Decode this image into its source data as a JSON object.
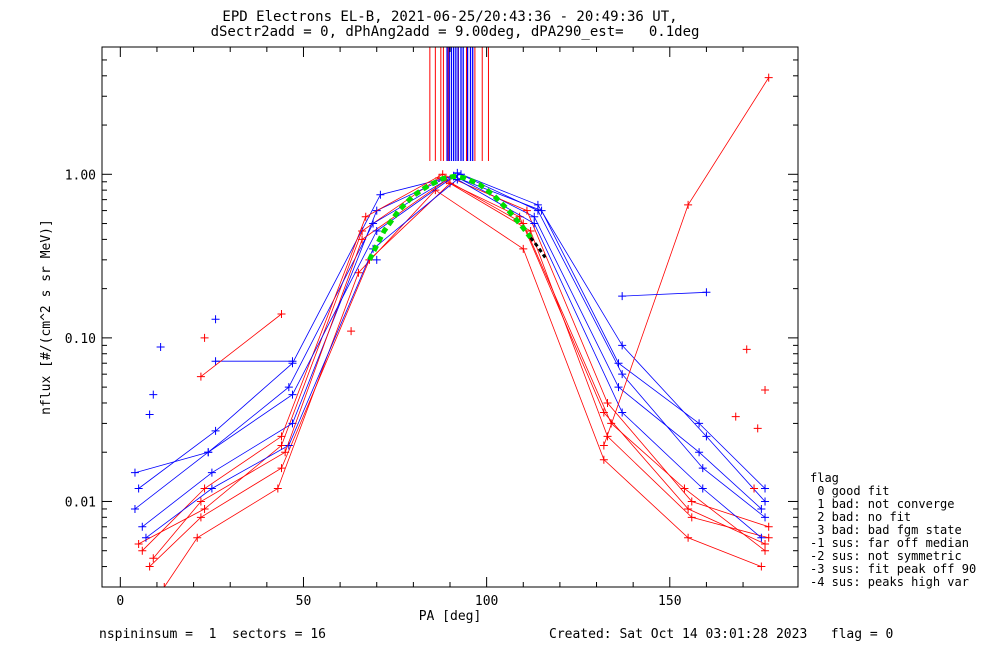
{
  "title": {
    "line1": "EPD Electrons EL-B, 2021-06-25/20:43:36 - 20:49:36 UT,",
    "line2": "dSectr2add = 0, dPhAng2add = 9.00deg, dPA290_est=   0.1deg"
  },
  "legend": {
    "heading": "flag",
    "items": [
      " 0 good fit",
      " 1 bad: not converge",
      " 2 bad: no fit",
      " 3 bad: bad fgm state",
      "-1 sus: far off median",
      "-2 sus: not symmetric",
      "-3 sus: fit peak off 90",
      "-4 sus: peaks high var"
    ]
  },
  "footer": {
    "left": "nspininsum =  1  sectors = 16",
    "right": "Created: Sat Oct 14 03:01:28 2023   flag = 0"
  },
  "colors": {
    "red": "#ff0000",
    "blue": "#0000ff",
    "fit": "#00dd00",
    "fit_tail": "#000000"
  },
  "chart_data": {
    "type": "scatter",
    "xlabel": "PA [deg]",
    "ylabel": "nflux [#/(cm^2 s sr MeV)]",
    "xlim": [
      -5,
      185
    ],
    "ylim": [
      0.003,
      6
    ],
    "yscale": "log",
    "xticks": [
      0,
      50,
      100,
      150
    ],
    "yticks": [
      0.01,
      0.1,
      1.0
    ],
    "ytick_labels": [
      "0.01",
      "0.10",
      "1.00"
    ],
    "series": [
      {
        "color": "red",
        "x": [
          5,
          23,
          44,
          66,
          87,
          109,
          132,
          155,
          176
        ],
        "y": [
          0.0055,
          0.009,
          0.022,
          0.45,
          0.95,
          0.55,
          0.035,
          0.009,
          0.0055
        ]
      },
      {
        "color": "blue",
        "x": [
          6,
          25,
          47,
          70,
          92,
          114,
          137,
          159,
          176
        ],
        "y": [
          0.007,
          0.015,
          0.03,
          0.6,
          1.02,
          0.6,
          0.06,
          0.016,
          0.008
        ]
      },
      {
        "color": "red",
        "x": [
          8,
          22,
          44,
          68,
          90,
          112,
          133,
          156,
          177
        ],
        "y": [
          0.004,
          0.008,
          0.016,
          0.3,
          0.88,
          0.45,
          0.025,
          0.008,
          0.006
        ]
      },
      {
        "color": "blue",
        "x": [
          4,
          24,
          46,
          69,
          91,
          113,
          136,
          158,
          175
        ],
        "y": [
          0.009,
          0.02,
          0.05,
          0.5,
          0.98,
          0.55,
          0.05,
          0.02,
          0.009
        ]
      },
      {
        "color": "red",
        "x": [
          12,
          21,
          43,
          65,
          86,
          110,
          132,
          155,
          175
        ],
        "y": [
          0.003,
          0.006,
          0.012,
          0.25,
          0.8,
          0.35,
          0.018,
          0.006,
          0.004
        ]
      },
      {
        "color": "blue",
        "x": [
          5,
          26,
          47,
          71,
          93,
          114,
          137,
          160,
          176
        ],
        "y": [
          0.012,
          0.027,
          0.07,
          0.75,
          1.0,
          0.65,
          0.09,
          0.025,
          0.01
        ]
      },
      {
        "color": "red",
        "x": [
          6,
          23,
          44,
          67,
          88,
          111,
          133,
          156,
          177
        ],
        "y": [
          0.005,
          0.012,
          0.025,
          0.55,
          1.0,
          0.6,
          0.04,
          0.01,
          0.007
        ]
      },
      {
        "color": "blue",
        "x": [
          7,
          25,
          46,
          69,
          92,
          113,
          137,
          159,
          175
        ],
        "y": [
          0.006,
          0.012,
          0.022,
          0.35,
          0.93,
          0.5,
          0.035,
          0.012,
          0.006
        ]
      },
      {
        "color": "red",
        "x": [
          9,
          22,
          45,
          66,
          89,
          110,
          134,
          154,
          176
        ],
        "y": [
          0.0045,
          0.01,
          0.02,
          0.4,
          0.92,
          0.5,
          0.03,
          0.012,
          0.005
        ]
      },
      {
        "color": "blue",
        "x": [
          4,
          24,
          47,
          70,
          91,
          115,
          136,
          158,
          176
        ],
        "y": [
          0.015,
          0.02,
          0.045,
          0.45,
          0.97,
          0.6,
          0.07,
          0.03,
          0.012
        ]
      },
      {
        "color": "red",
        "x": [
          132,
          155,
          177
        ],
        "y": [
          0.022,
          0.65,
          3.9
        ]
      },
      {
        "color": "blue",
        "x": [
          137,
          160
        ],
        "y": [
          0.18,
          0.19
        ]
      },
      {
        "color": "blue",
        "x": [
          26,
          47
        ],
        "y": [
          0.072,
          0.072
        ]
      },
      {
        "color": "red",
        "x": [
          22,
          44
        ],
        "y": [
          0.058,
          0.14
        ]
      }
    ],
    "extra_points": [
      {
        "color": "blue",
        "x": 11,
        "y": 0.088
      },
      {
        "color": "blue",
        "x": 26,
        "y": 0.13
      },
      {
        "color": "blue",
        "x": 9,
        "y": 0.045
      },
      {
        "color": "blue",
        "x": 8,
        "y": 0.034
      },
      {
        "color": "red",
        "x": 23,
        "y": 0.1
      },
      {
        "color": "red",
        "x": 171,
        "y": 0.085
      },
      {
        "color": "red",
        "x": 174,
        "y": 0.028
      },
      {
        "color": "red",
        "x": 176,
        "y": 0.048
      },
      {
        "color": "red",
        "x": 168,
        "y": 0.033
      },
      {
        "color": "red",
        "x": 173,
        "y": 0.012
      },
      {
        "color": "blue",
        "x": 70,
        "y": 0.3
      },
      {
        "color": "red",
        "x": 63,
        "y": 0.11
      }
    ],
    "fit_curve": {
      "color": "fit",
      "x": [
        68,
        72,
        76,
        80,
        84,
        88,
        91,
        94,
        98,
        102,
        106,
        110,
        112
      ],
      "y": [
        0.3,
        0.45,
        0.6,
        0.74,
        0.85,
        0.94,
        0.97,
        0.95,
        0.87,
        0.74,
        0.6,
        0.47,
        0.41
      ]
    },
    "fit_tail": {
      "color": "fit_tail",
      "x": [
        112,
        114,
        116
      ],
      "y": [
        0.41,
        0.36,
        0.31
      ]
    },
    "vertical_markers": {
      "red": [
        84.5,
        86,
        87.5,
        88.2,
        89.5,
        92.3,
        94.5,
        96.8,
        98.8,
        100.5
      ],
      "blue": [
        89.2,
        89.8,
        90.4,
        91,
        91.6,
        92.2,
        93,
        93.6,
        94.8,
        95.6,
        96.2
      ]
    }
  }
}
